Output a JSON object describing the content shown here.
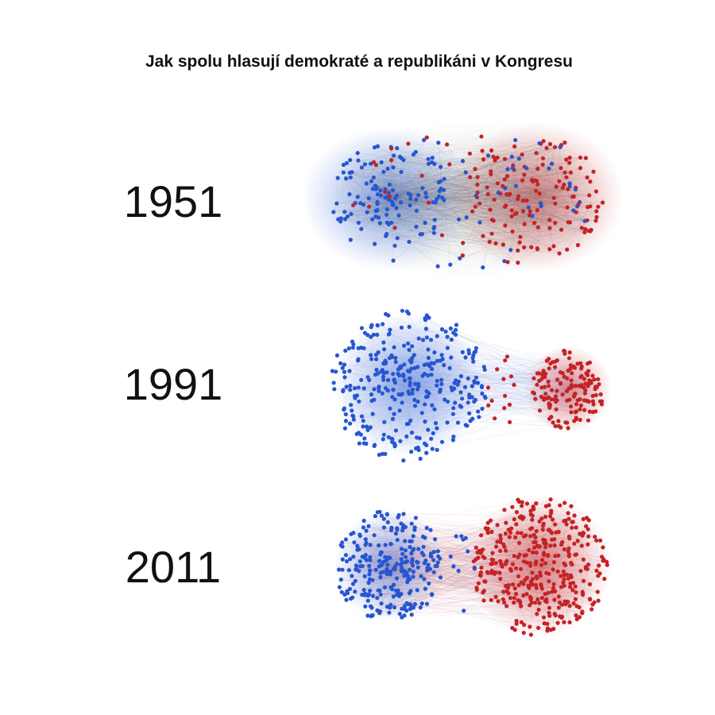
{
  "title": "Jak spolu hlasují demokraté a republikáni v Kongresu",
  "rows": [
    {
      "label": "1951"
    },
    {
      "label": "1991"
    },
    {
      "label": "2011"
    }
  ]
}
